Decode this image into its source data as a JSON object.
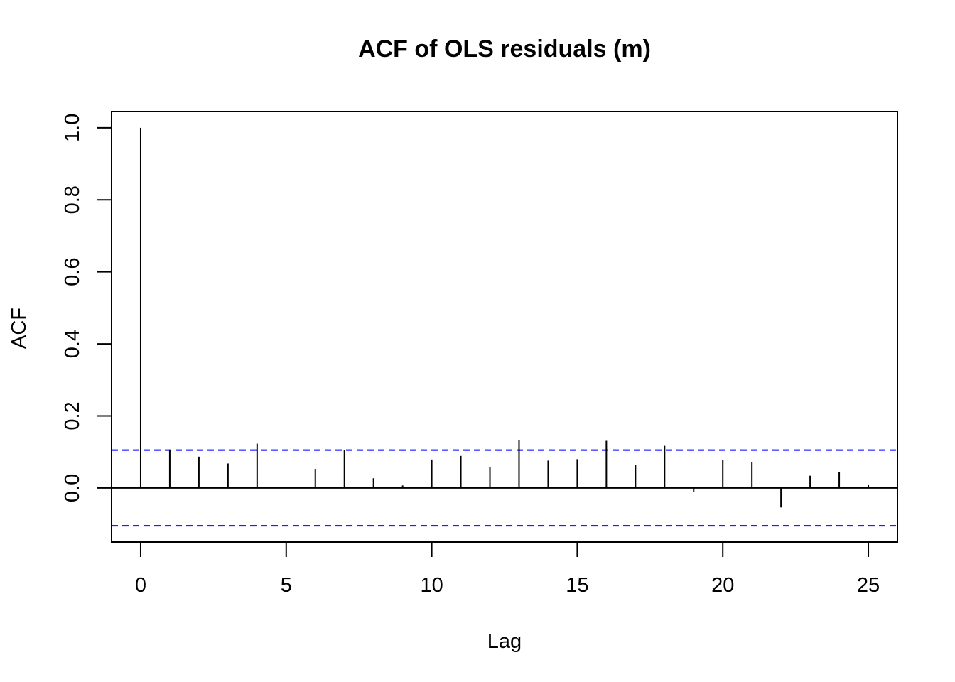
{
  "chart_data": {
    "type": "bar",
    "title": "ACF of OLS residuals (m)",
    "xlabel": "Lag",
    "ylabel": "ACF",
    "x": [
      0,
      1,
      2,
      3,
      4,
      5,
      6,
      7,
      8,
      9,
      10,
      11,
      12,
      13,
      14,
      15,
      16,
      17,
      18,
      19,
      20,
      21,
      22,
      23,
      24,
      25
    ],
    "values": [
      1.0,
      0.105,
      0.087,
      0.068,
      0.123,
      0.0,
      0.053,
      0.106,
      0.027,
      0.007,
      0.079,
      0.089,
      0.057,
      0.133,
      0.076,
      0.08,
      0.131,
      0.063,
      0.117,
      -0.01,
      0.078,
      0.072,
      -0.054,
      0.034,
      0.045,
      0.009
    ],
    "xlim": [
      -1,
      26
    ],
    "ylim": [
      -0.15,
      1.045
    ],
    "xticks": [
      0,
      5,
      10,
      15,
      20,
      25
    ],
    "yticks": [
      0.0,
      0.2,
      0.4,
      0.6,
      0.8,
      1.0
    ],
    "xtick_labels": [
      "0",
      "5",
      "10",
      "15",
      "20",
      "25"
    ],
    "ytick_labels": [
      "0.0",
      "0.2",
      "0.4",
      "0.6",
      "0.8",
      "1.0"
    ],
    "confidence_bound": 0.105,
    "colors": {
      "bars": "#000000",
      "confidence_lines": "#0000ff",
      "zero_line": "#000000"
    },
    "grid": false,
    "legend": "none"
  }
}
